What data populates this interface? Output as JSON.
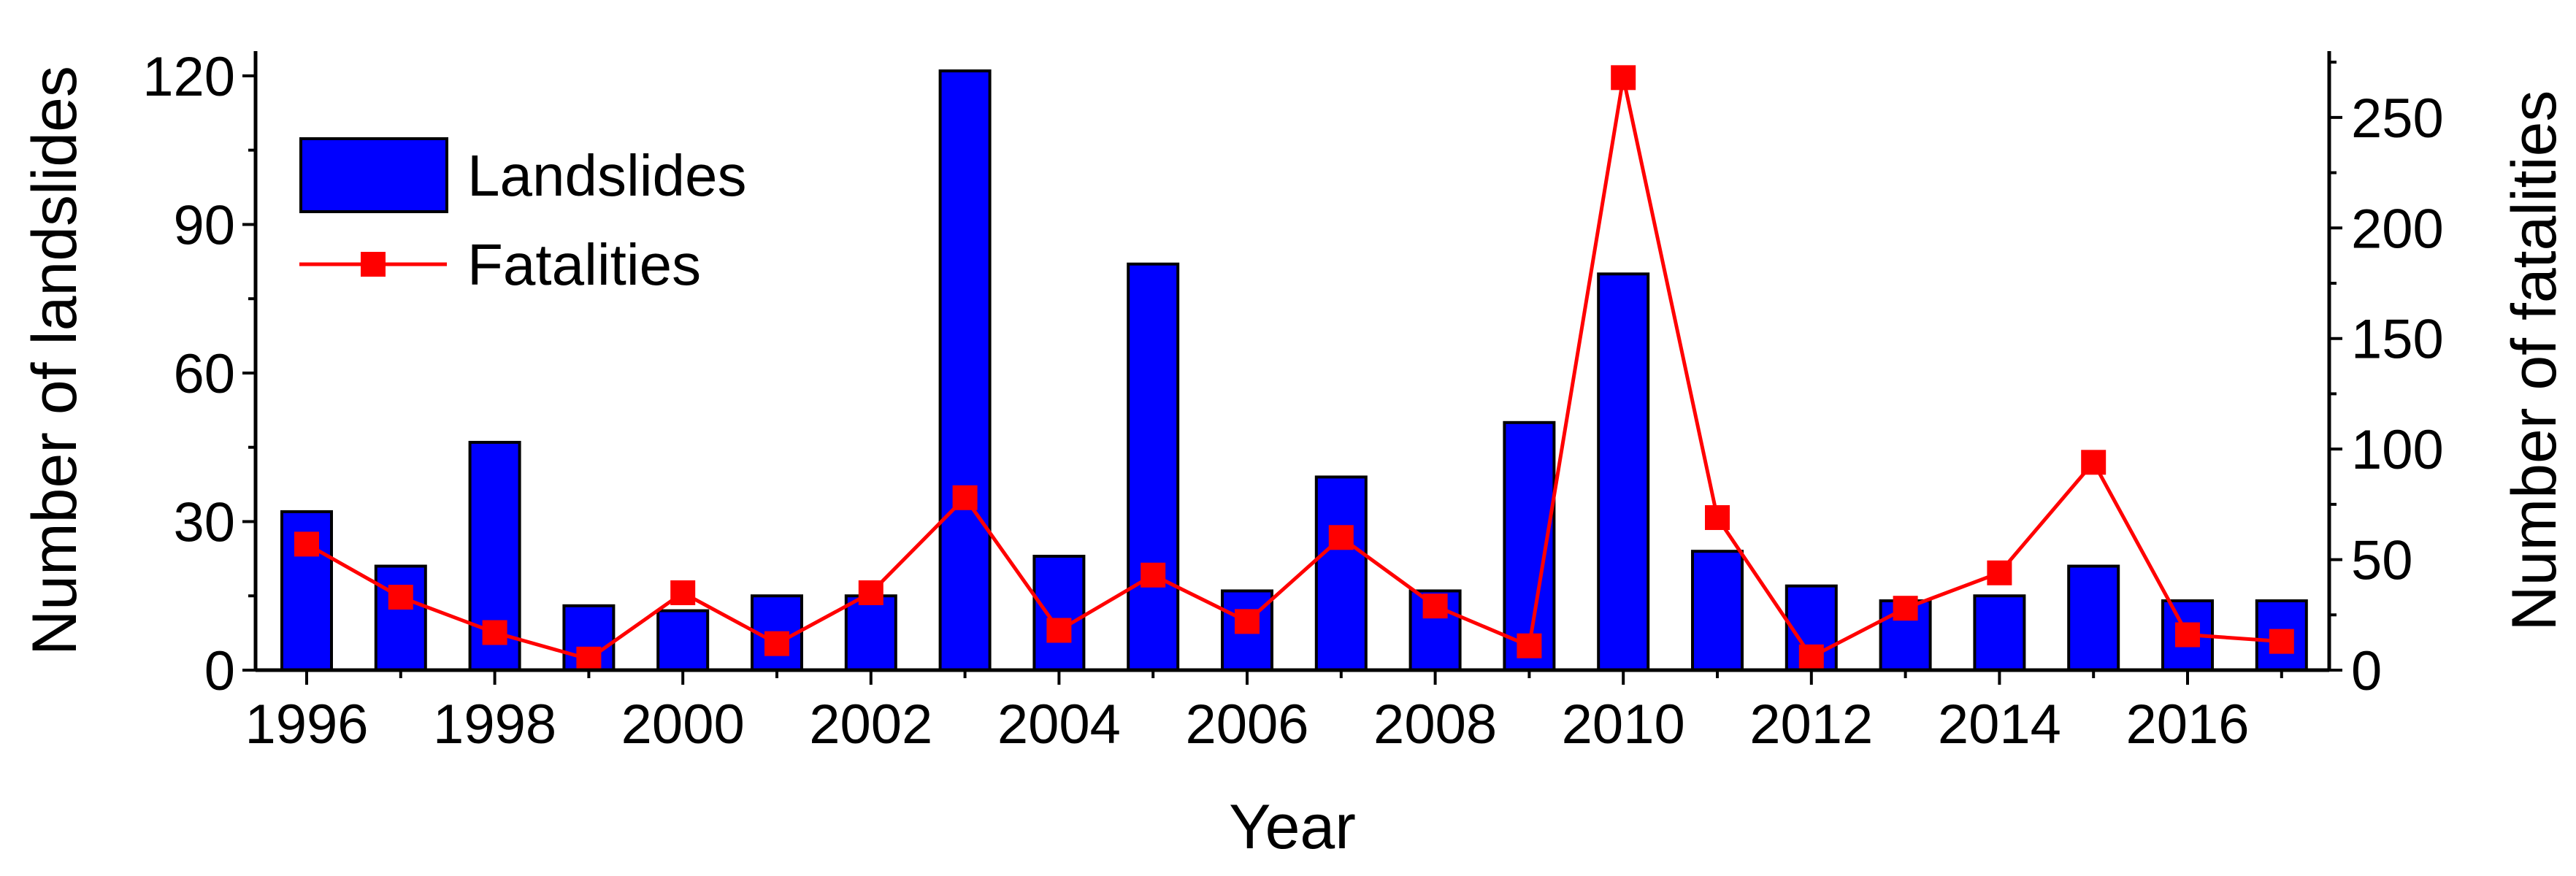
{
  "chart_data": {
    "type": "bar",
    "title": "",
    "xlabel": "Year",
    "ylabel": "Number of landslides",
    "y2label": "Number of fatalities",
    "categories": [
      "1996",
      "1997",
      "1998",
      "1999",
      "2000",
      "2001",
      "2002",
      "2003",
      "2004",
      "2005",
      "2006",
      "2007",
      "2008",
      "2009",
      "2010",
      "2011",
      "2012",
      "2013",
      "2014",
      "2015",
      "2016",
      "2017"
    ],
    "x_tick_labels": [
      "1996",
      "1998",
      "2000",
      "2002",
      "2004",
      "2006",
      "2008",
      "2010",
      "2012",
      "2014",
      "2016"
    ],
    "ylim": [
      0,
      125
    ],
    "y_ticks": [
      0,
      30,
      60,
      90,
      120
    ],
    "y2lim": [
      0,
      280
    ],
    "y2_ticks": [
      0,
      50,
      100,
      150,
      200,
      250
    ],
    "grid": false,
    "legend_position": "top-left",
    "series": [
      {
        "name": "Landslides",
        "kind": "bar",
        "axis": "left",
        "color": "#0000ff",
        "values": [
          32,
          21,
          46,
          13,
          12,
          15,
          15,
          121,
          23,
          82,
          16,
          39,
          16,
          50,
          80,
          24,
          17,
          14,
          15,
          21,
          14,
          14
        ]
      },
      {
        "name": "Fatalities",
        "kind": "line",
        "axis": "right",
        "color": "#ff0000",
        "marker": "square",
        "values": [
          57,
          33,
          17,
          5,
          35,
          12,
          35,
          78,
          18,
          43,
          22,
          60,
          29,
          11,
          268,
          69,
          6,
          28,
          44,
          94,
          16,
          13
        ]
      }
    ]
  }
}
